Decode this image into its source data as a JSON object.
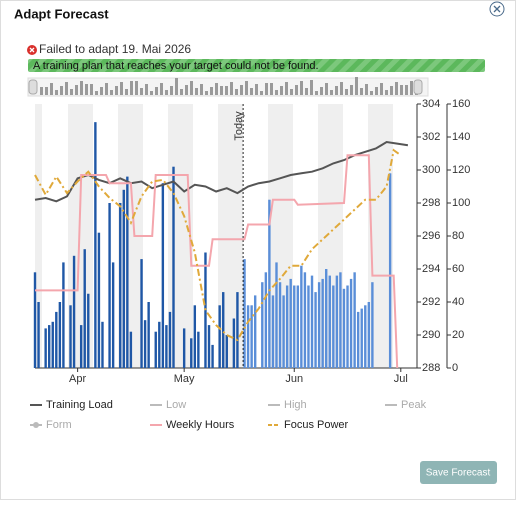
{
  "dialog": {
    "title": "Adapt Forecast",
    "error": "Failed to adapt 19. Mai 2026",
    "message": "A training plan that reaches your target could not be found.",
    "button": "Save Forecast"
  },
  "chart_data": {
    "type": "line",
    "xlim": [
      0,
      107
    ],
    "xticks": [
      {
        "value": 12,
        "label": "Apr"
      },
      {
        "value": 42,
        "label": "May"
      },
      {
        "value": 73,
        "label": "Jun"
      },
      {
        "value": 103,
        "label": "Jul"
      }
    ],
    "ylim": [
      288,
      304
    ],
    "yticks": [
      288,
      290,
      292,
      294,
      296,
      298,
      300,
      302,
      304
    ],
    "y2lim": [
      0,
      160
    ],
    "y2ticks": [
      0,
      20,
      40,
      60,
      80,
      100,
      120,
      140,
      160
    ],
    "annotation": {
      "x": 58.6,
      "label": "Today"
    },
    "bars": [
      {
        "color": "#1f57a6",
        "axis": "y2",
        "x": [
          0,
          1,
          3,
          4,
          5,
          6,
          7,
          8,
          10,
          11,
          13,
          14,
          15,
          17,
          18,
          19,
          21,
          22,
          24,
          25,
          26,
          27,
          30,
          31,
          32,
          34,
          35,
          36,
          37,
          38,
          39,
          42,
          44,
          45,
          46,
          48,
          49,
          50,
          52,
          53,
          54,
          56,
          57
        ],
        "values": [
          58,
          40,
          24,
          26,
          28,
          34,
          40,
          64,
          38,
          68,
          26,
          72,
          45,
          149,
          82,
          28,
          100,
          64,
          100,
          108,
          116,
          22,
          66,
          29,
          40,
          22,
          28,
          112,
          26,
          34,
          122,
          24,
          18,
          38,
          22,
          70,
          26,
          14,
          38,
          46,
          20,
          30,
          46
        ]
      },
      {
        "color": "#5a8ed8",
        "axis": "y2",
        "x": [
          59,
          60,
          61,
          62,
          64,
          65,
          66,
          67,
          68,
          69,
          70,
          71,
          72,
          73,
          74,
          75,
          76,
          77,
          78,
          79,
          80,
          81,
          82,
          83,
          84,
          85,
          86,
          87,
          88,
          89,
          90,
          91,
          92,
          93,
          94,
          95,
          100
        ],
        "values": [
          66,
          38,
          38,
          44,
          52,
          58,
          102,
          44,
          64,
          52,
          44,
          50,
          54,
          50,
          50,
          62,
          58,
          50,
          56,
          46,
          52,
          54,
          60,
          56,
          50,
          56,
          58,
          48,
          50,
          54,
          58,
          34,
          36,
          38,
          40,
          52,
          118
        ]
      }
    ],
    "series": [
      {
        "name": "Training Load",
        "color": "#555555",
        "axis": "y2",
        "x": [
          0,
          3,
          6,
          9,
          12,
          15,
          18,
          21,
          24,
          27,
          30,
          33,
          36,
          39,
          42,
          45,
          48,
          51,
          54,
          57,
          60,
          63,
          66,
          69,
          72,
          75,
          78,
          81,
          84,
          87,
          90,
          93,
          96,
          99,
          102,
          105
        ],
        "values": [
          102,
          103,
          101,
          104,
          115,
          117,
          114,
          112,
          115,
          112,
          113,
          109,
          111,
          113,
          107,
          111,
          110,
          107,
          109,
          106,
          110,
          112,
          113,
          115,
          117,
          118,
          119,
          121,
          124,
          126,
          129,
          131,
          133,
          137,
          136,
          135
        ]
      },
      {
        "name": "Low",
        "color": "#bbbbbb",
        "hidden": true
      },
      {
        "name": "High",
        "color": "#bbbbbb",
        "hidden": true
      },
      {
        "name": "Peak",
        "color": "#bbbbbb",
        "hidden": true
      },
      {
        "name": "Form",
        "color": "#bbbbbb",
        "hidden": true,
        "marker": "dot"
      },
      {
        "name": "Weekly Hours",
        "color": "#f4a6ad",
        "axis": "y2",
        "x": [
          0,
          12,
          13,
          20,
          21,
          27,
          28,
          33,
          34,
          43,
          44,
          49,
          50,
          59,
          60,
          66,
          67,
          73,
          74,
          87,
          88,
          94,
          95,
          101,
          102
        ],
        "values": [
          47,
          47,
          117,
          117,
          112,
          112,
          80,
          80,
          117,
          117,
          62,
          62,
          78,
          78,
          87,
          87,
          102,
          102,
          99,
          100,
          129,
          129,
          56,
          56,
          0
        ]
      },
      {
        "name": "Focus Power",
        "color": "#e0a93a",
        "axis": "y",
        "style": "dash-dot",
        "x": [
          0,
          3,
          6,
          9,
          12,
          15,
          18,
          21,
          24,
          27,
          30,
          33,
          36,
          39,
          42,
          45,
          48,
          51,
          54,
          57,
          60,
          63,
          66,
          69,
          72,
          75,
          78,
          81,
          84,
          87,
          90,
          93,
          96,
          99,
          101,
          103
        ],
        "values": [
          299.7,
          298.5,
          299.6,
          298.6,
          299.3,
          299.9,
          299.0,
          298.3,
          297.8,
          296.8,
          298.4,
          299.3,
          299.4,
          298.6,
          297.2,
          295.0,
          291.5,
          290.6,
          290.0,
          289.7,
          290.8,
          291.6,
          292.7,
          293.4,
          294.2,
          294.2,
          295.2,
          295.8,
          296.4,
          297.0,
          297.6,
          298.2,
          298.2,
          299.0,
          301.2,
          300.9
        ]
      }
    ]
  }
}
